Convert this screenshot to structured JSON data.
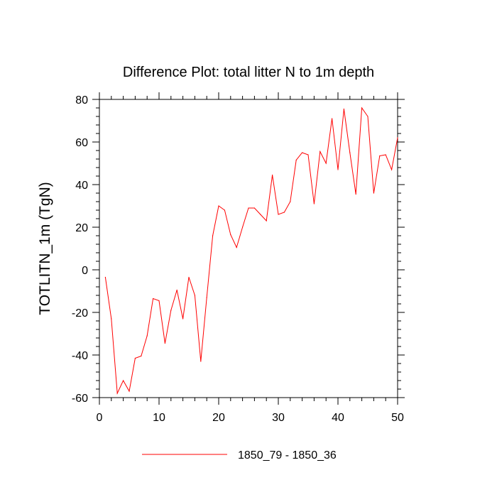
{
  "chart_data": {
    "type": "line",
    "title": "Difference Plot: total litter N to 1m depth",
    "ylabel": "TOTLITN_1m  (TgN)",
    "xlabel": "",
    "xlim": [
      0,
      50
    ],
    "ylim": [
      -60,
      80
    ],
    "x_ticks": [
      0,
      10,
      20,
      30,
      40,
      50
    ],
    "y_ticks": [
      -60,
      -40,
      -20,
      0,
      20,
      40,
      60,
      80
    ],
    "x_tick_labels": [
      "0",
      "10",
      "20",
      "30",
      "40",
      "50"
    ],
    "y_tick_labels": [
      "-60",
      "-40",
      "-20",
      "0",
      "20",
      "40",
      "60",
      "80"
    ],
    "grid": false,
    "legend_position": "bottom-center",
    "series": [
      {
        "name": "1850_79 - 1850_36",
        "color": "#ff0000",
        "x": [
          1,
          2,
          3,
          4,
          5,
          6,
          7,
          8,
          9,
          10,
          11,
          12,
          13,
          14,
          15,
          16,
          17,
          18,
          19,
          20,
          21,
          22,
          23,
          24,
          25,
          26,
          27,
          28,
          29,
          30,
          31,
          32,
          33,
          34,
          35,
          36,
          37,
          38,
          39,
          40,
          41,
          42,
          43,
          44,
          45,
          46,
          47,
          48,
          49,
          50
        ],
        "values": [
          -3.5,
          -23,
          -58,
          -52,
          -57,
          -41.5,
          -40.5,
          -31,
          -13.5,
          -14.5,
          -34.5,
          -19,
          -9.5,
          -23,
          -3.5,
          -12,
          -43,
          -13,
          16,
          30,
          28,
          16.5,
          10.5,
          20,
          29,
          29,
          26,
          23,
          44.5,
          26,
          27,
          32,
          51.5,
          55,
          54,
          31,
          55.5,
          50,
          71,
          47,
          75.5,
          55,
          35.5,
          76,
          72,
          36,
          53.5,
          54,
          47,
          62
        ]
      }
    ]
  }
}
